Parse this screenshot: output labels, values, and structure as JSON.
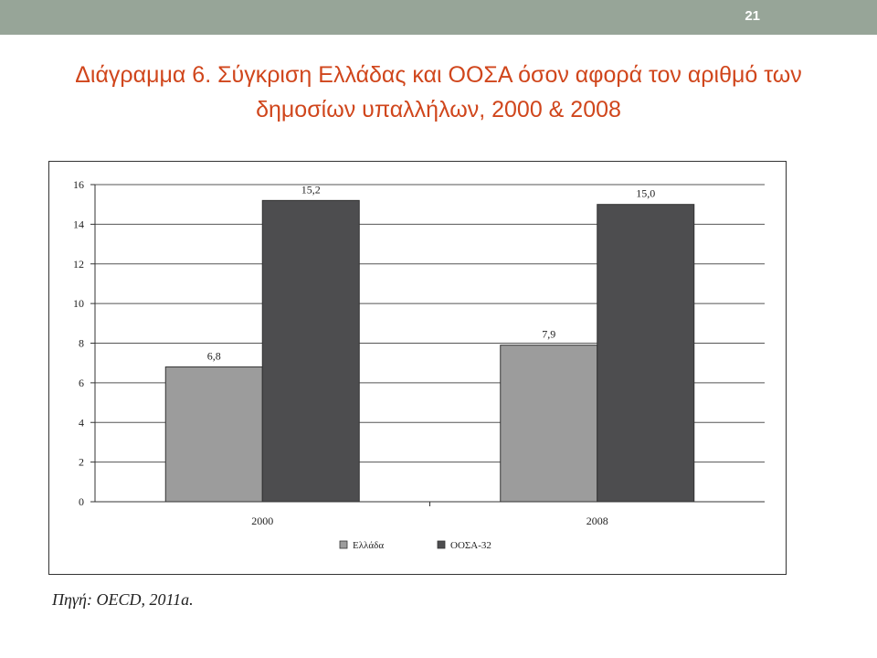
{
  "slide": {
    "number": "21",
    "title": "Διάγραμμα 6. Σύγκριση Ελλάδας και ΟΟΣΑ όσον αφορά τον αριθμό των δημοσίων υπαλλήλων, 2000 & 2008",
    "source": "Πηγή: OECD, 2011a."
  },
  "colors": {
    "top_bar": "#97a598",
    "title": "#d0461c",
    "greece": "#9c9c9c",
    "oecd": "#4d4d4f"
  },
  "chart_data": {
    "type": "bar",
    "categories": [
      "2000",
      "2008"
    ],
    "series": [
      {
        "name": "Ελλάδα",
        "values": [
          6.8,
          7.9
        ],
        "labels": [
          "6,8",
          "7,9"
        ],
        "color": "#9c9c9c"
      },
      {
        "name": "ΟΟΣΑ-32",
        "values": [
          15.2,
          15.0
        ],
        "labels": [
          "15,2",
          "15,0"
        ],
        "color": "#4d4d4f"
      }
    ],
    "ylim": [
      0,
      16
    ],
    "yticks": [
      0,
      2,
      4,
      6,
      8,
      10,
      12,
      14,
      16
    ],
    "grid": true,
    "legend": "bottom-center"
  }
}
